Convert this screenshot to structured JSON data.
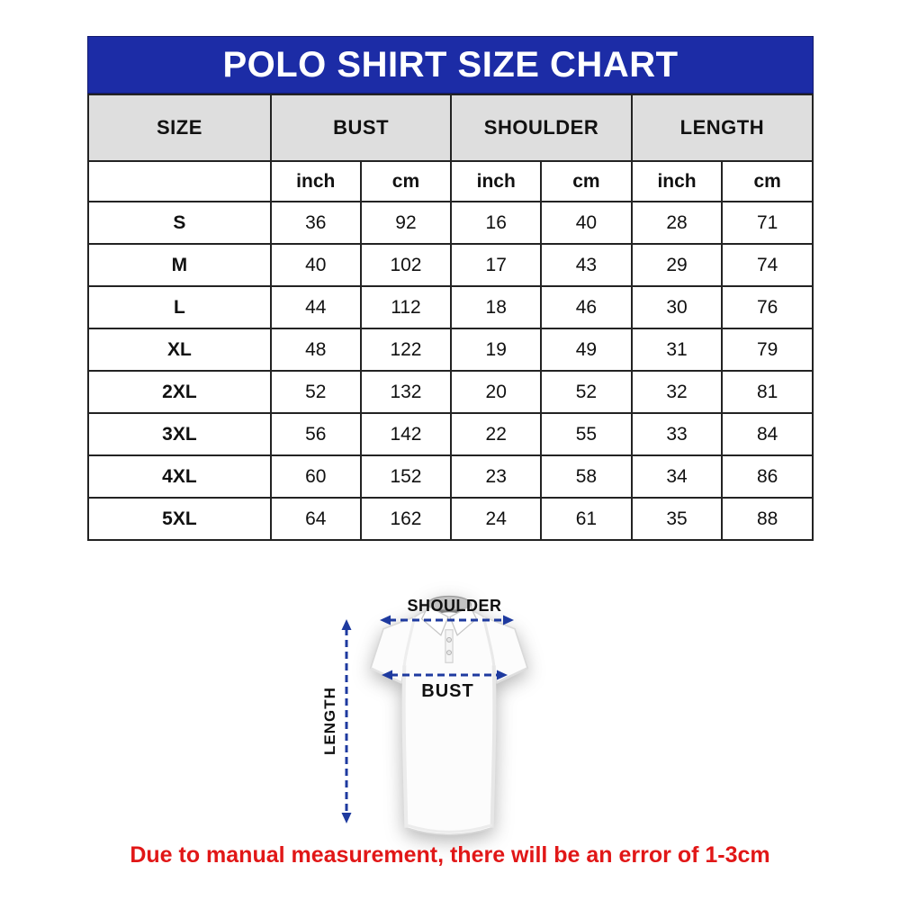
{
  "title": "POLO SHIRT SIZE CHART",
  "colors": {
    "title_bar_blue": "#1c2ca6",
    "header_gray": "#dedede",
    "table_border": "#232323",
    "arrow_blue": "#1e3a9f",
    "note_red": "#e11717"
  },
  "table": {
    "group_headers": [
      "SIZE",
      "BUST",
      "SHOULDER",
      "LENGTH"
    ],
    "unit_row": [
      "",
      "inch",
      "cm",
      "inch",
      "cm",
      "inch",
      "cm"
    ],
    "rows": [
      {
        "size": "S",
        "values": [
          "36",
          "92",
          "16",
          "40",
          "28",
          "71"
        ]
      },
      {
        "size": "M",
        "values": [
          "40",
          "102",
          "17",
          "43",
          "29",
          "74"
        ]
      },
      {
        "size": "L",
        "values": [
          "44",
          "112",
          "18",
          "46",
          "30",
          "76"
        ]
      },
      {
        "size": "XL",
        "values": [
          "48",
          "122",
          "19",
          "49",
          "31",
          "79"
        ]
      },
      {
        "size": "2XL",
        "values": [
          "52",
          "132",
          "20",
          "52",
          "32",
          "81"
        ]
      },
      {
        "size": "3XL",
        "values": [
          "56",
          "142",
          "22",
          "55",
          "33",
          "84"
        ]
      },
      {
        "size": "4XL",
        "values": [
          "60",
          "152",
          "23",
          "58",
          "34",
          "86"
        ]
      },
      {
        "size": "5XL",
        "values": [
          "64",
          "162",
          "24",
          "61",
          "35",
          "88"
        ]
      }
    ]
  },
  "diagram": {
    "shoulder_label": "SHOULDER",
    "bust_label": "BUST",
    "length_label": "LENGTH"
  },
  "note": "Due to manual measurement, there will be an error of 1-3cm"
}
